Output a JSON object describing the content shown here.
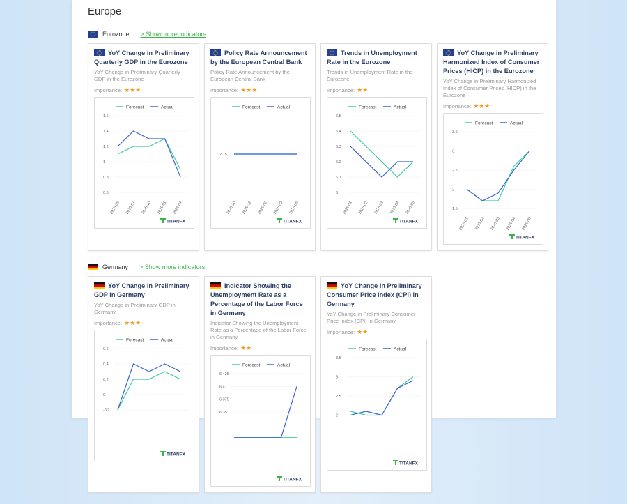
{
  "heading": "Europe",
  "importance_label": "Importance:",
  "brand": "TITANFX",
  "sections": [
    {
      "name": "Eurozone",
      "link": "> Show more indicators",
      "cards": [
        {
          "title": "YoY Change in Preliminary Quarterly GDP in the Eurozone",
          "description": "YoY Change in Preliminary Quarterly GDP in the Eurozone",
          "stars": "★★★",
          "chart": {
            "type": "line",
            "x": [
              "2025-05",
              "2025-07",
              "2025-10",
              "2026-01",
              "2026-04"
            ],
            "ylim": [
              0.6,
              1.6
            ],
            "yticks": [
              0.6,
              0.8,
              1,
              1.2,
              1.4,
              1.6
            ],
            "series": [
              {
                "name": "Forecast",
                "color": "#3ecf9e",
                "values": [
                  1.1,
                  1.2,
                  1.2,
                  1.3,
                  0.9
                ]
              },
              {
                "name": "Actual",
                "color": "#3d63d6",
                "values": [
                  1.2,
                  1.4,
                  1.3,
                  1.3,
                  0.8
                ]
              }
            ]
          }
        },
        {
          "title": "Policy Rate Announcement by the European Central Bank",
          "description": "Policy Rate Announcement by the European Central Bank",
          "stars": "★★★",
          "chart": {
            "type": "line",
            "x": [
              "2025-10",
              "2025-12",
              "2026-02",
              "2026-03",
              "2026-05"
            ],
            "ylim": [
              2.1,
              2.2
            ],
            "yticks": [
              2.15
            ],
            "series": [
              {
                "name": "Forecast",
                "color": "#3ecf9e",
                "values": [
                  2.15,
                  2.15,
                  2.15,
                  2.15,
                  2.15
                ]
              },
              {
                "name": "Actual",
                "color": "#3d63d6",
                "values": [
                  2.15,
                  2.15,
                  2.15,
                  2.15,
                  2.15
                ]
              }
            ]
          }
        },
        {
          "title": "Trends in Unemployment Rate in the Eurozone",
          "description": "Trends in Unemployment Rate in the Eurozone",
          "stars": "★★",
          "chart": {
            "type": "line",
            "x": [
              "2026-01",
              "2026-02",
              "2026-03",
              "2026-04",
              "2026-05"
            ],
            "ylim": [
              6,
              6.5
            ],
            "yticks": [
              6,
              6.1,
              6.2,
              6.3,
              6.4,
              6.5
            ],
            "series": [
              {
                "name": "Forecast",
                "color": "#3ecf9e",
                "values": [
                  6.4,
                  6.3,
                  6.2,
                  6.1,
                  6.2
                ]
              },
              {
                "name": "Actual",
                "color": "#3d63d6",
                "values": [
                  6.3,
                  6.2,
                  6.1,
                  6.2,
                  6.2
                ]
              }
            ]
          }
        },
        {
          "title": "YoY Change in Preliminary Harmonized Index of Consumer Prices (HICP) in the Eurozone",
          "description": "YoY Change in Preliminary Harmonized Index of Consumer Prices (HICP) in the Eurozone",
          "stars": "★★★",
          "chart": {
            "type": "line",
            "x": [
              "2026-01",
              "2026-02",
              "2026-03",
              "2026-04",
              "2026-05"
            ],
            "ylim": [
              1.5,
              3.5
            ],
            "yticks": [
              1.5,
              2,
              2.5,
              3,
              3.5
            ],
            "series": [
              {
                "name": "Forecast",
                "color": "#3ecf9e",
                "values": [
                  2.0,
                  1.7,
                  1.7,
                  2.6,
                  3.0
                ]
              },
              {
                "name": "Actual",
                "color": "#3d63d6",
                "values": [
                  2.0,
                  1.7,
                  1.9,
                  2.5,
                  3.0
                ]
              }
            ]
          }
        }
      ]
    },
    {
      "name": "Germany",
      "link": "> Show more indicators",
      "cards": [
        {
          "title": "YoY Change in Preliminary GDP in Germany",
          "description": "YoY Change in Preliminary GDP in Germany",
          "stars": "★★★",
          "chart": {
            "type": "line",
            "ylim": [
              -0.4,
              0.6
            ],
            "yticks": [
              -0.2,
              0,
              0.2,
              0.4,
              0.6
            ],
            "series": [
              {
                "name": "Forecast",
                "color": "#3ecf9e",
                "values": [
                  -0.2,
                  0.2,
                  0.2,
                  0.3,
                  0.2
                ]
              },
              {
                "name": "Actual",
                "color": "#3d63d6",
                "values": [
                  -0.2,
                  0.4,
                  0.3,
                  0.4,
                  0.3
                ]
              }
            ]
          }
        },
        {
          "title": "Indicator Showing the Unemployment Rate as a Percentage of the Labor Force in Germany",
          "description": "Indicator Showing the Unemployment Rate as a Percentage of the Labor Force in Germany",
          "stars": "★★",
          "chart": {
            "type": "line",
            "ylim": [
              6.275,
              6.425
            ],
            "yticks": [
              6.35,
              6.375,
              6.4,
              6.425
            ],
            "series": [
              {
                "name": "Forecast",
                "color": "#3ecf9e",
                "values": [
                  6.3,
                  6.3,
                  6.3,
                  6.3,
                  6.3
                ]
              },
              {
                "name": "Actual",
                "color": "#3d63d6",
                "values": [
                  6.3,
                  6.3,
                  6.3,
                  6.3,
                  6.4
                ]
              }
            ]
          }
        },
        {
          "title": "YoY Change in Preliminary Consumer Price Index (CPI) in Germany",
          "description": "YoY Change in Preliminary Consumer Price Index (CPI) in Germany",
          "stars": "★★",
          "chart": {
            "type": "line",
            "ylim": [
              1.5,
              3.5
            ],
            "yticks": [
              2,
              2.5,
              3,
              3.5
            ],
            "series": [
              {
                "name": "Forecast",
                "color": "#3ecf9e",
                "values": [
                  2.1,
                  2.0,
                  2.0,
                  2.7,
                  3.0
                ]
              },
              {
                "name": "Actual",
                "color": "#3d63d6",
                "values": [
                  2.0,
                  2.1,
                  2.0,
                  2.7,
                  2.9
                ]
              }
            ]
          }
        }
      ]
    }
  ]
}
